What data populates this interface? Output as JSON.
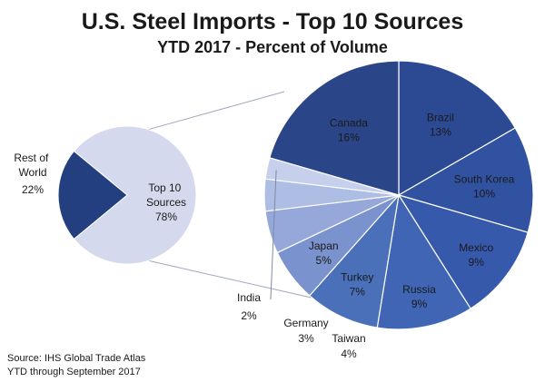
{
  "chart_data": [
    {
      "type": "pie",
      "title": "U.S. Steel Imports - Top 10 Sources",
      "subtitle": "YTD 2017 - Percent of Volume",
      "slices": [
        {
          "label": "Top 10 Sources",
          "value": 78,
          "value_label": "78%",
          "color": "#d5d9ed"
        },
        {
          "label": "Rest of World",
          "value": 22,
          "value_label": "22%",
          "color": "#233f80"
        }
      ]
    },
    {
      "type": "pie",
      "slices": [
        {
          "label": "Brazil",
          "value": 13,
          "value_label": "13%",
          "color": "#2c4a93"
        },
        {
          "label": "South Korea",
          "value": 10,
          "value_label": "10%",
          "color": "#3052a0"
        },
        {
          "label": "Mexico",
          "value": 9,
          "value_label": "9%",
          "color": "#3759ab"
        },
        {
          "label": "Russia",
          "value": 9,
          "value_label": "9%",
          "color": "#4065b5"
        },
        {
          "label": "Turkey",
          "value": 7,
          "value_label": "7%",
          "color": "#4a70ba"
        },
        {
          "label": "Japan",
          "value": 5,
          "value_label": "5%",
          "color": "#7a92cd"
        },
        {
          "label": "Taiwan",
          "value": 4,
          "value_label": "4%",
          "color": "#96a8d9"
        },
        {
          "label": "Germany",
          "value": 3,
          "value_label": "3%",
          "color": "#aebde3"
        },
        {
          "label": "India",
          "value": 2,
          "value_label": "2%",
          "color": "#c6d0ec"
        },
        {
          "label": "Canada",
          "value": 16,
          "value_label": "16%",
          "color": "#2a4588"
        }
      ]
    }
  ],
  "source": {
    "line1": "Source: IHS Global Trade Atlas",
    "line2": "YTD through September 2017"
  }
}
